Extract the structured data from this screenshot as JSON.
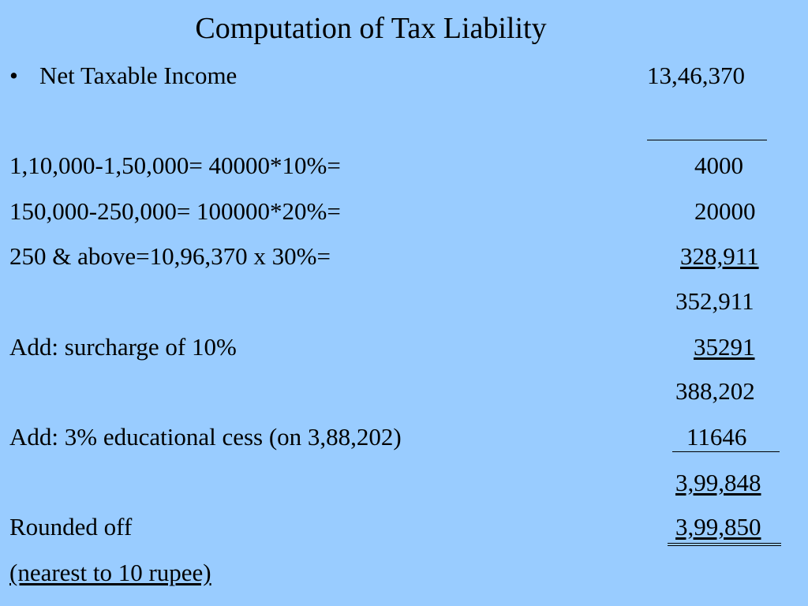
{
  "title": "Computation of Tax Liability",
  "bullet": {
    "glyph": "•",
    "label": "Net Taxable Income",
    "amount": "13,46,370"
  },
  "rows": [
    {
      "label": "1,10,000-1,50,000=   40000*10%=",
      "amount": "4000"
    },
    {
      "label": "150,000-250,000= 100000*20%=",
      "amount": "20000"
    },
    {
      "label": "250 & above=10,96,370  x 30%=",
      "amount": "328,911"
    },
    {
      "label": "",
      "amount": "352,911"
    },
    {
      "label": "Add: surcharge of 10%",
      "amount": "35291"
    },
    {
      "label": "",
      "amount": "388,202"
    },
    {
      "label": "Add: 3% educational cess (on 3,88,202)",
      "amount": "11646"
    },
    {
      "label": "",
      "amount": "3,99,848"
    },
    {
      "label": "Rounded off",
      "amount": "3,99,850"
    },
    {
      "label": "(nearest to 10 rupee)",
      "amount": ""
    }
  ],
  "colors": {
    "background": "#99ccff",
    "text": "#000000"
  }
}
